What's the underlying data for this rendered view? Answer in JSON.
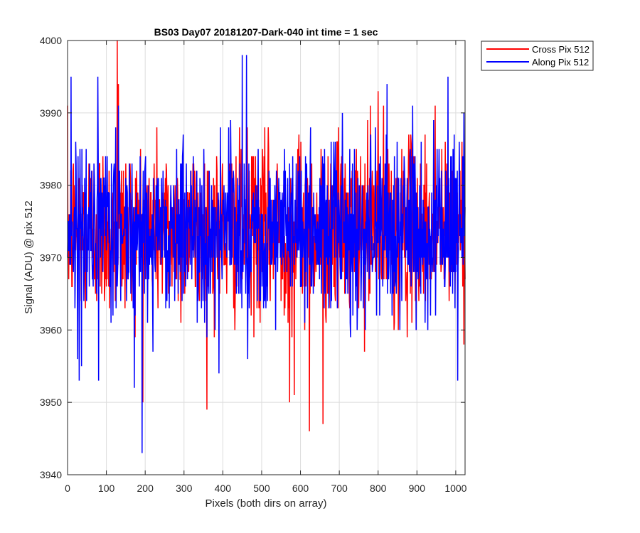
{
  "chart_data": {
    "type": "line",
    "title": "BS03 Day07 20181207-Dark-040 int time = 1 sec",
    "xlabel": "Pixels (both dirs on array)",
    "ylabel": "Signal (ADU) @ pix 512",
    "xlim": [
      0,
      1024
    ],
    "ylim": [
      3940,
      4000
    ],
    "xticks": [
      0,
      100,
      200,
      300,
      400,
      500,
      600,
      700,
      800,
      900,
      1000
    ],
    "yticks": [
      3940,
      3950,
      3960,
      3970,
      3980,
      3990,
      4000
    ],
    "grid": true,
    "legend_placement": "outside-top-right",
    "series": [
      {
        "name": "Cross Pix 512",
        "color": "#ff0000",
        "mean": 3974,
        "spread": 6,
        "extremes": [
          {
            "x": 128,
            "y": 4000
          },
          {
            "x": 623,
            "y": 3946
          },
          {
            "x": 658,
            "y": 3947
          },
          {
            "x": 572,
            "y": 3950
          },
          {
            "x": 584,
            "y": 3951
          },
          {
            "x": 131,
            "y": 3994
          },
          {
            "x": 800,
            "y": 3993
          },
          {
            "x": 780,
            "y": 3991
          },
          {
            "x": 947,
            "y": 3991
          }
        ]
      },
      {
        "name": "Along Pix 512",
        "color": "#0000ff",
        "mean": 3974,
        "spread": 6,
        "extremes": [
          {
            "x": 192,
            "y": 3943
          },
          {
            "x": 450,
            "y": 3998
          },
          {
            "x": 461,
            "y": 3998
          },
          {
            "x": 9,
            "y": 3995
          },
          {
            "x": 823,
            "y": 3994
          },
          {
            "x": 980,
            "y": 3995
          },
          {
            "x": 30,
            "y": 3953
          },
          {
            "x": 80,
            "y": 3953
          },
          {
            "x": 1005,
            "y": 3953
          },
          {
            "x": 390,
            "y": 3954
          }
        ]
      }
    ]
  },
  "colors": {
    "background": "#ffffff",
    "axes": "#262626",
    "grid": "#dcdcdc"
  }
}
